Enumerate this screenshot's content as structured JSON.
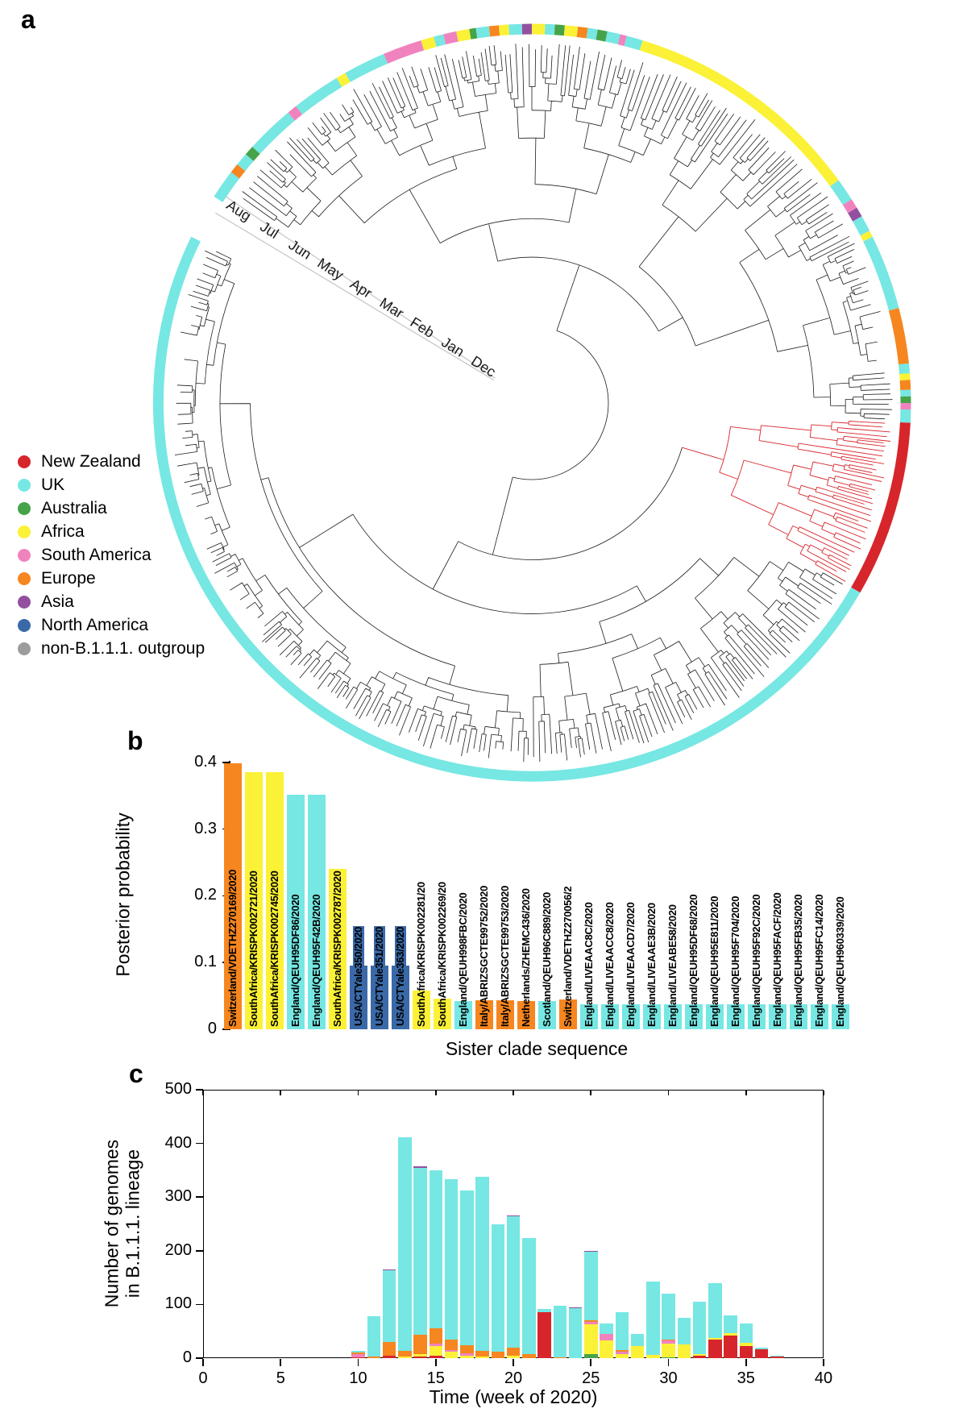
{
  "panels": {
    "a": {
      "label": "a"
    },
    "b": {
      "label": "b"
    },
    "c": {
      "label": "c"
    }
  },
  "region_colors": {
    "New Zealand": "#d7252c",
    "UK": "#76e7e3",
    "Australia": "#46a349",
    "Africa": "#fbf136",
    "South America": "#f083be",
    "Europe": "#f6861f",
    "Asia": "#9450a0",
    "North America": "#3a69a8",
    "non-B.1.1.1. outgroup": "#9c9c9c"
  },
  "legend": {
    "items": [
      "New Zealand",
      "UK",
      "Australia",
      "Africa",
      "South America",
      "Europe",
      "Asia",
      "North America",
      "non-B.1.1.1. outgroup"
    ]
  },
  "chart_data": [
    {
      "id": "a",
      "type": "radial-phylogeny",
      "time_axis_months": [
        "Dec",
        "Jan",
        "Feb",
        "Mar",
        "Apr",
        "May",
        "Jun",
        "Jul",
        "Aug"
      ],
      "highlighted_clade": {
        "region": "New Zealand",
        "angle_from": 93,
        "angle_to": 120
      },
      "ring_segments": [
        {
          "from": 303,
          "to": 307.5,
          "region": "UK"
        },
        {
          "from": 307.5,
          "to": 309,
          "region": "Europe"
        },
        {
          "from": 309,
          "to": 311,
          "region": "UK"
        },
        {
          "from": 311,
          "to": 312.5,
          "region": "Australia"
        },
        {
          "from": 312.5,
          "to": 320,
          "region": "UK"
        },
        {
          "from": 320,
          "to": 321.5,
          "region": "South America"
        },
        {
          "from": 321.5,
          "to": 329,
          "region": "UK"
        },
        {
          "from": 329,
          "to": 330.5,
          "region": "Africa"
        },
        {
          "from": 330.5,
          "to": 337,
          "region": "UK"
        },
        {
          "from": 337,
          "to": 343,
          "region": "South America"
        },
        {
          "from": 343,
          "to": 345,
          "region": "Africa"
        },
        {
          "from": 345,
          "to": 346.5,
          "region": "UK"
        },
        {
          "from": 346.5,
          "to": 348.5,
          "region": "South America"
        },
        {
          "from": 348.5,
          "to": 350.5,
          "region": "Africa"
        },
        {
          "from": 350.5,
          "to": 351.5,
          "region": "Australia"
        },
        {
          "from": 351.5,
          "to": 353.5,
          "region": "UK"
        },
        {
          "from": 353.5,
          "to": 355,
          "region": "Europe"
        },
        {
          "from": 355,
          "to": 356.5,
          "region": "Africa"
        },
        {
          "from": 356.5,
          "to": 358.5,
          "region": "UK"
        },
        {
          "from": 358.5,
          "to": 360,
          "region": "Asia"
        },
        {
          "from": 0,
          "to": 2,
          "region": "Africa"
        },
        {
          "from": 2,
          "to": 3.5,
          "region": "UK"
        },
        {
          "from": 3.5,
          "to": 5,
          "region": "Australia"
        },
        {
          "from": 5,
          "to": 7,
          "region": "Africa"
        },
        {
          "from": 7,
          "to": 8.5,
          "region": "Europe"
        },
        {
          "from": 8.5,
          "to": 10,
          "region": "UK"
        },
        {
          "from": 10,
          "to": 11.5,
          "region": "Australia"
        },
        {
          "from": 11.5,
          "to": 13.5,
          "region": "UK"
        },
        {
          "from": 13.5,
          "to": 14.5,
          "region": "South America"
        },
        {
          "from": 14.5,
          "to": 17,
          "region": "UK"
        },
        {
          "from": 17,
          "to": 54,
          "region": "Africa"
        },
        {
          "from": 54,
          "to": 57.5,
          "region": "UK"
        },
        {
          "from": 57.5,
          "to": 59,
          "region": "South America"
        },
        {
          "from": 59,
          "to": 60.5,
          "region": "Asia"
        },
        {
          "from": 60.5,
          "to": 63,
          "region": "UK"
        },
        {
          "from": 63,
          "to": 64,
          "region": "Africa"
        },
        {
          "from": 64,
          "to": 75.5,
          "region": "UK"
        },
        {
          "from": 75.5,
          "to": 84,
          "region": "Europe"
        },
        {
          "from": 84,
          "to": 85.5,
          "region": "UK"
        },
        {
          "from": 85.5,
          "to": 86.5,
          "region": "Africa"
        },
        {
          "from": 86.5,
          "to": 88,
          "region": "Europe"
        },
        {
          "from": 88,
          "to": 89,
          "region": "UK"
        },
        {
          "from": 89,
          "to": 90,
          "region": "Australia"
        },
        {
          "from": 90,
          "to": 91,
          "region": "South America"
        },
        {
          "from": 91,
          "to": 93,
          "region": "UK"
        },
        {
          "from": 93,
          "to": 120,
          "region": "New Zealand"
        },
        {
          "from": 120,
          "to": 296,
          "region": "UK"
        }
      ]
    },
    {
      "id": "b",
      "type": "bar",
      "ylabel": "Posterior probability",
      "xlabel": "Sister clade sequence",
      "ylim": [
        0,
        0.4
      ],
      "yticks": [
        "0",
        "0.1",
        "0.2",
        "0.3",
        "0.4"
      ],
      "bars": [
        {
          "label": "Switzerland/VDETHZ270169/2020",
          "region": "Europe",
          "value": 0.398
        },
        {
          "label": "SouthAfrica/KRISPK002721/2020",
          "region": "Africa",
          "value": 0.385
        },
        {
          "label": "SouthAfrica/KRISPK002745/2020",
          "region": "Africa",
          "value": 0.385
        },
        {
          "label": "England/QEUH95DF86/2020",
          "region": "UK",
          "value": 0.351
        },
        {
          "label": "England/QEUH95F42B/2020",
          "region": "UK",
          "value": 0.351
        },
        {
          "label": "SouthAfrica/KRISPK002787/2020",
          "region": "Africa",
          "value": 0.24
        },
        {
          "label": "USA/CTYale350/2020",
          "region": "North America",
          "value": 0.095,
          "label_bg": true
        },
        {
          "label": "USA/CTYale351/2020",
          "region": "North America",
          "value": 0.095,
          "label_bg": true
        },
        {
          "label": "USA/CTYale363/2020",
          "region": "North America",
          "value": 0.095,
          "label_bg": true
        },
        {
          "label": "SouthAfrica/KRISPK002281/20",
          "region": "Africa",
          "value": 0.058
        },
        {
          "label": "SouthAfrica/KRISPK002269/20",
          "region": "Africa",
          "value": 0.046
        },
        {
          "label": "England/QEUH998FBC/2020",
          "region": "UK",
          "value": 0.042
        },
        {
          "label": "Italy/ABRIZSGCTE99752/2020",
          "region": "Europe",
          "value": 0.044
        },
        {
          "label": "Italy/ABRIZSGCTE99753/2020",
          "region": "Europe",
          "value": 0.044
        },
        {
          "label": "Netherlands/ZHEMC436/2020",
          "region": "Europe",
          "value": 0.042
        },
        {
          "label": "Scotland/QEUH96C889/2020",
          "region": "UK",
          "value": 0.042
        },
        {
          "label": "Switzerland/VDETHZ270056/2",
          "region": "Europe",
          "value": 0.045
        },
        {
          "label": "England/LIVEAAC8C/2020",
          "region": "UK",
          "value": 0.037
        },
        {
          "label": "England/LIVEAACC8/2020",
          "region": "UK",
          "value": 0.037
        },
        {
          "label": "England/LIVEAACD7/2020",
          "region": "UK",
          "value": 0.037
        },
        {
          "label": "England/LIVEAAE3B/2020",
          "region": "UK",
          "value": 0.037
        },
        {
          "label": "England/LIVEABE58/2020",
          "region": "UK",
          "value": 0.037
        },
        {
          "label": "England/QEUH95DF68/2020",
          "region": "UK",
          "value": 0.037
        },
        {
          "label": "England/QEUH95E811/2020",
          "region": "UK",
          "value": 0.037
        },
        {
          "label": "England/QEUH95F704/2020",
          "region": "UK",
          "value": 0.037
        },
        {
          "label": "England/QEUH95F92C/2020",
          "region": "UK",
          "value": 0.037
        },
        {
          "label": "England/QEUH95FACF/2020",
          "region": "UK",
          "value": 0.037
        },
        {
          "label": "England/QEUH95FB35/2020",
          "region": "UK",
          "value": 0.037
        },
        {
          "label": "England/QEUH95FC14/2020",
          "region": "UK",
          "value": 0.037
        },
        {
          "label": "England/QEUH960339/2020",
          "region": "UK",
          "value": 0.037
        }
      ]
    },
    {
      "id": "c",
      "type": "stacked-bar",
      "ylabel_lines": [
        "Number of genomes",
        "in B.1.1.1. lineage"
      ],
      "xlabel": "Time (week of 2020)",
      "ylim": [
        0,
        500
      ],
      "yticks": [
        0,
        100,
        200,
        300,
        400,
        500
      ],
      "xticks": [
        0,
        5,
        10,
        15,
        20,
        25,
        30,
        35,
        40
      ],
      "weeks": [
        10,
        11,
        12,
        13,
        14,
        15,
        16,
        17,
        18,
        19,
        20,
        21,
        22,
        23,
        24,
        25,
        26,
        27,
        28,
        29,
        30,
        31,
        32,
        33,
        34,
        35,
        36,
        37
      ],
      "series": [
        {
          "region": "New Zealand",
          "values": [
            2,
            0,
            5,
            0,
            3,
            5,
            0,
            0,
            0,
            0,
            0,
            0,
            85,
            0,
            0,
            0,
            0,
            0,
            0,
            0,
            0,
            0,
            5,
            35,
            42,
            22,
            16,
            3
          ]
        },
        {
          "region": "Australia",
          "values": [
            0,
            0,
            0,
            0,
            0,
            0,
            0,
            0,
            0,
            0,
            0,
            0,
            0,
            0,
            0,
            8,
            0,
            0,
            0,
            0,
            2,
            0,
            0,
            0,
            0,
            0,
            0,
            0
          ]
        },
        {
          "region": "Africa",
          "values": [
            0,
            0,
            0,
            3,
            5,
            18,
            12,
            5,
            3,
            0,
            4,
            0,
            0,
            0,
            0,
            55,
            33,
            8,
            22,
            6,
            25,
            25,
            3,
            3,
            5,
            6,
            0,
            0
          ]
        },
        {
          "region": "South America",
          "values": [
            5,
            0,
            0,
            0,
            0,
            4,
            3,
            4,
            0,
            0,
            0,
            0,
            0,
            0,
            0,
            5,
            12,
            4,
            0,
            0,
            6,
            0,
            0,
            0,
            0,
            0,
            0,
            0
          ]
        },
        {
          "region": "Europe",
          "values": [
            4,
            3,
            25,
            10,
            35,
            28,
            20,
            15,
            10,
            12,
            15,
            8,
            0,
            2,
            0,
            3,
            0,
            3,
            0,
            0,
            2,
            0,
            0,
            0,
            0,
            0,
            0,
            0
          ]
        },
        {
          "region": "UK",
          "values": [
            3,
            75,
            133,
            399,
            312,
            295,
            298,
            288,
            325,
            238,
            245,
            216,
            7,
            95,
            93,
            127,
            20,
            70,
            23,
            137,
            85,
            50,
            97,
            102,
            33,
            37,
            4,
            1
          ]
        },
        {
          "region": "Asia",
          "values": [
            0,
            0,
            2,
            0,
            2,
            0,
            0,
            0,
            0,
            0,
            2,
            0,
            0,
            0,
            2,
            2,
            0,
            0,
            0,
            0,
            0,
            0,
            0,
            0,
            0,
            0,
            0,
            0
          ]
        }
      ]
    }
  ]
}
